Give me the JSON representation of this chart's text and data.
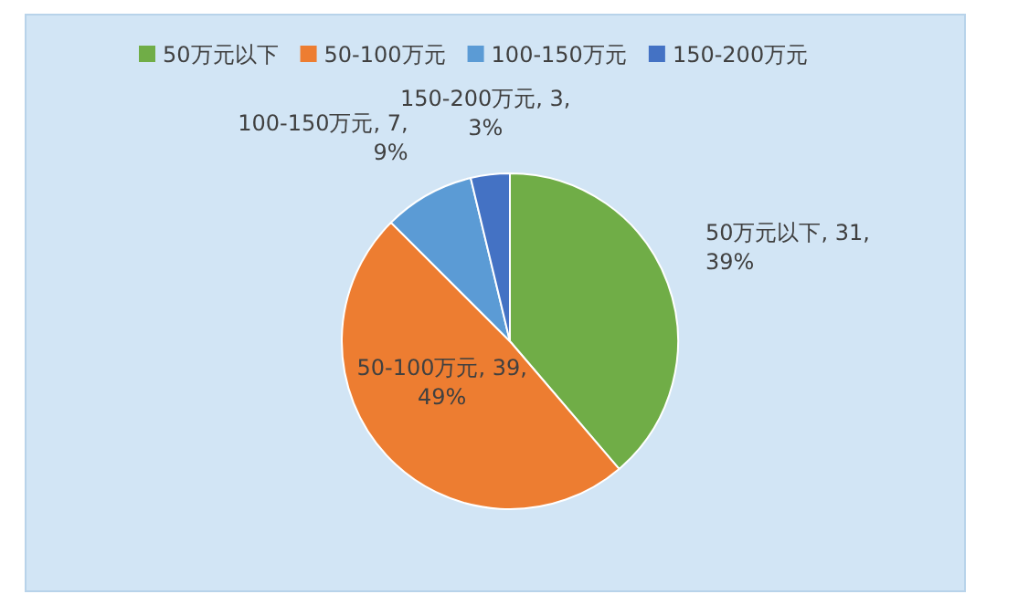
{
  "chart_data": {
    "type": "pie",
    "categories": [
      "50万元以下",
      "50-100万元",
      "100-150万元",
      "150-200万元"
    ],
    "values": [
      31,
      39,
      7,
      3
    ],
    "colors": [
      "#70ad47",
      "#ed7d31",
      "#5b9bd5",
      "#4472c4"
    ],
    "value_labels": [
      "50万元以下, 31, 39%",
      "50-100万元, 39, 49%",
      "100-150万元, 7, 9%",
      "150-200万元, 3, 3%"
    ],
    "legend": "top"
  }
}
